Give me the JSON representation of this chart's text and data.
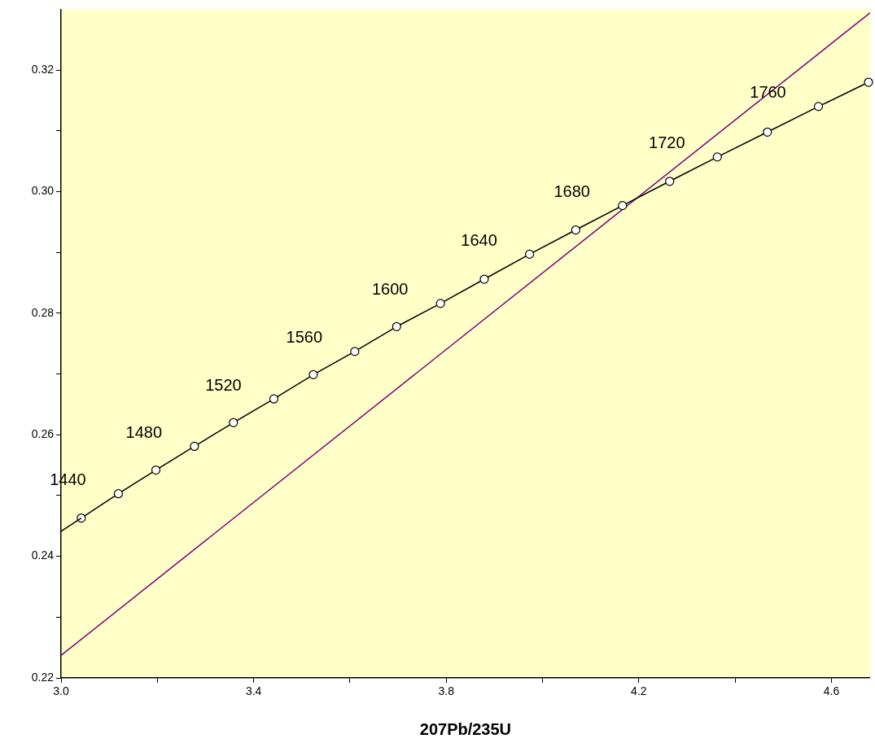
{
  "chart_data": {
    "type": "line",
    "xlabel": "207Pb/235U",
    "xlim": [
      3.0,
      4.68
    ],
    "ylim": [
      0.22,
      0.33
    ],
    "xticks": [
      {
        "value": 3.0,
        "label": "3.0"
      },
      {
        "value": 3.2,
        "label": null
      },
      {
        "value": 3.4,
        "label": "3.4"
      },
      {
        "value": 3.6,
        "label": null
      },
      {
        "value": 3.8,
        "label": "3.8"
      },
      {
        "value": 4.0,
        "label": null
      },
      {
        "value": 4.2,
        "label": "4.2"
      },
      {
        "value": 4.4,
        "label": null
      },
      {
        "value": 4.6,
        "label": "4.6"
      }
    ],
    "yticks": [
      0.22,
      {
        "value": 0.23,
        "label": null
      },
      0.24,
      {
        "value": 0.25,
        "label": null
      },
      0.26,
      {
        "value": 0.27,
        "label": null
      },
      0.28,
      {
        "value": 0.29,
        "label": null
      },
      {
        "value": 0.3,
        "label": "0.30"
      },
      {
        "value": 0.31,
        "label": null
      },
      0.32
    ],
    "grid": false,
    "legend": false,
    "series": [
      {
        "color": "#000000",
        "x": [
          3.0,
          3.042
        ],
        "values": [
          0.2441,
          0.2463
        ]
      },
      {
        "color": "#000000",
        "marker": "circle",
        "x": [
          3.042,
          3.119,
          3.197,
          3.277,
          3.358,
          3.442,
          3.524,
          3.61,
          3.697,
          3.788,
          3.879,
          3.973,
          4.069,
          4.166,
          4.264,
          4.363,
          4.467,
          4.573,
          4.677
        ],
        "values": [
          0.2463,
          0.2503,
          0.2542,
          0.2581,
          0.262,
          0.2659,
          0.2699,
          0.2737,
          0.2778,
          0.2816,
          0.2856,
          0.2897,
          0.2937,
          0.2977,
          0.3017,
          0.3057,
          0.3098,
          0.314,
          0.318
        ]
      },
      {
        "color": "#800080",
        "x": [
          3.0,
          4.68
        ],
        "values": [
          0.2237,
          0.3294
        ]
      }
    ],
    "annotations": [
      {
        "text": "1440",
        "x": 3.119,
        "y": 0.2503
      },
      {
        "text": "1480",
        "x": 3.277,
        "y": 0.2581
      },
      {
        "text": "1520",
        "x": 3.442,
        "y": 0.2659
      },
      {
        "text": "1560",
        "x": 3.61,
        "y": 0.2737
      },
      {
        "text": "1600",
        "x": 3.788,
        "y": 0.2816
      },
      {
        "text": "1640",
        "x": 3.973,
        "y": 0.2897
      },
      {
        "text": "1680",
        "x": 4.166,
        "y": 0.2977
      },
      {
        "text": "1720",
        "x": 4.363,
        "y": 0.3057
      },
      {
        "text": "1760",
        "x": 4.573,
        "y": 0.314
      }
    ]
  }
}
